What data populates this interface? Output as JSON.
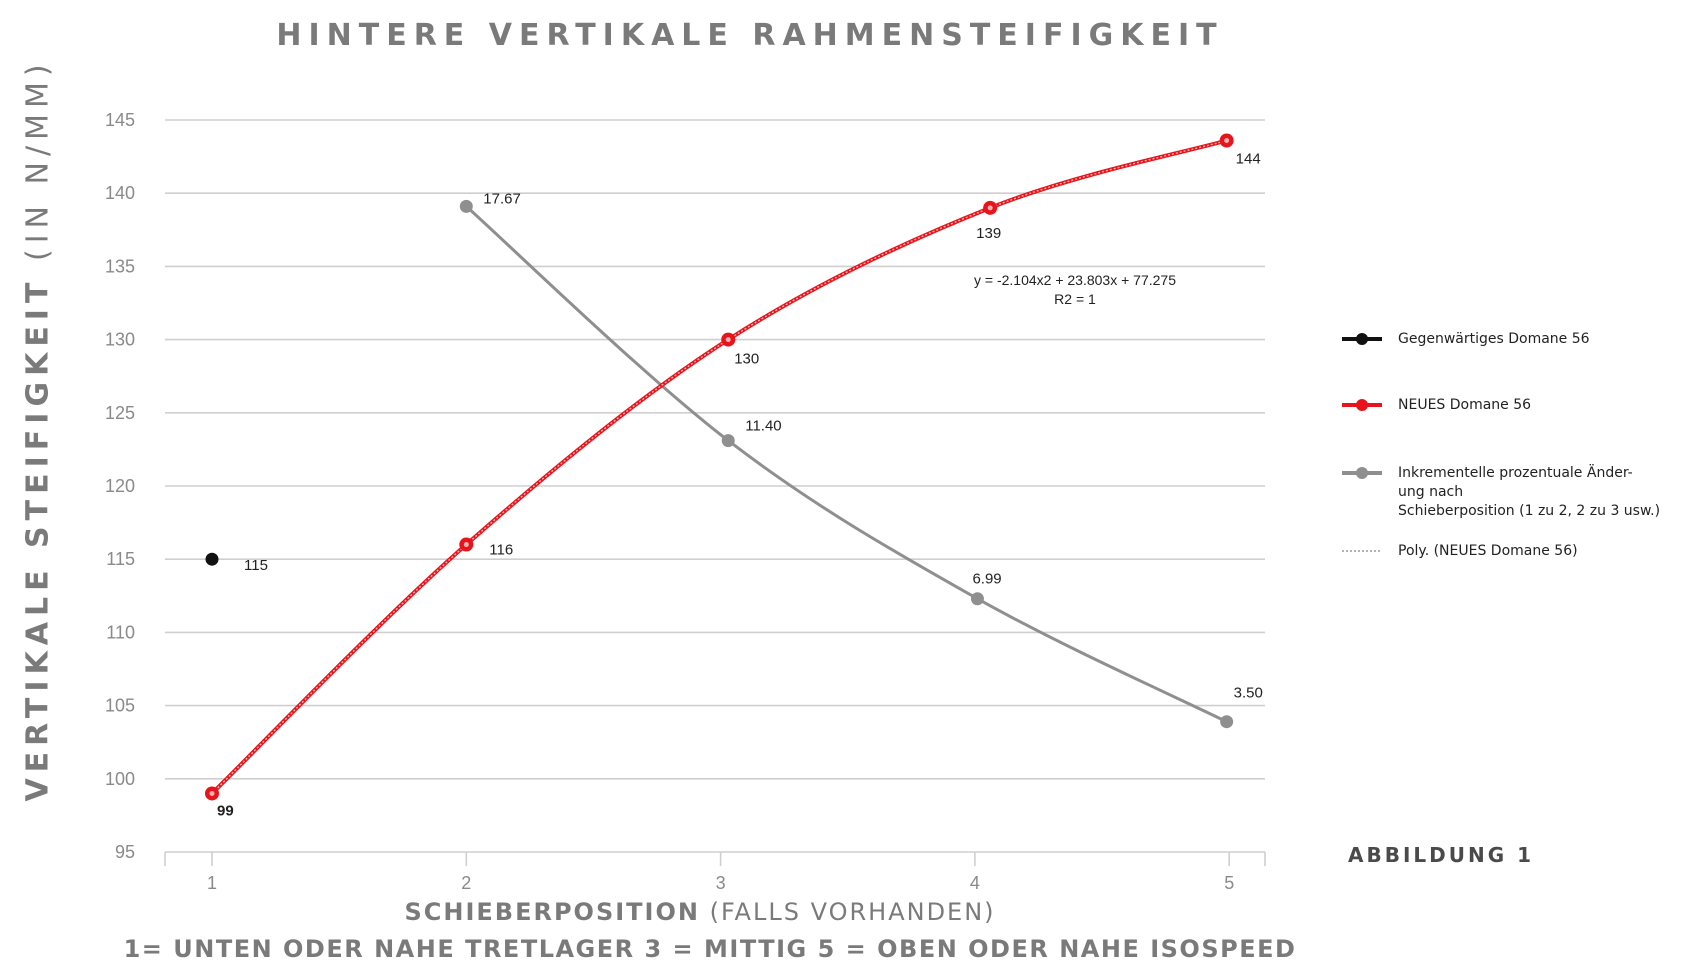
{
  "chart_data": {
    "type": "line",
    "title": "HINTERE VERTIKALE RAHMENSTEIFIGKEIT",
    "ylabel": {
      "main": "VERTIKALE STEIFIGKEIT",
      "unit": "(IN N/MM)"
    },
    "xlabel": {
      "main": "SCHIEBERPOSITION",
      "suffix": "(FALLS VORHANDEN)"
    },
    "xlabel_note": "1= UNTEN ODER NAHE TRETLAGER  3 = MITTIG  5 = OBEN ODER NAHE ISOSPEED",
    "figure_label": "ABBILDUNG 1",
    "x_ticks": [
      "1",
      "2",
      "3",
      "4",
      "5"
    ],
    "y_ticks": [
      "95",
      "100",
      "105",
      "110",
      "115",
      "120",
      "125",
      "130",
      "135",
      "140",
      "145"
    ],
    "ylim": [
      95,
      145
    ],
    "xlim": [
      0.8,
      5.15
    ],
    "grid": true,
    "legend_position": "right",
    "series": [
      {
        "name": "Gegenwärtiges Domane 56",
        "color": "#111111",
        "points": [
          {
            "x": 1,
            "y": 115,
            "label": "115"
          }
        ]
      },
      {
        "name": "NEUES Domane 56",
        "color": "#e8141b",
        "points": [
          {
            "x": 1,
            "y": 99,
            "label": "99"
          },
          {
            "x": 2,
            "y": 116,
            "label": "116"
          },
          {
            "x": 3.03,
            "y": 130,
            "label": "130"
          },
          {
            "x": 4.06,
            "y": 139,
            "label": "139"
          },
          {
            "x": 4.99,
            "y": 143.6,
            "label": "144"
          }
        ]
      },
      {
        "name": "Inkrementelle prozentuale Änder-\nung nach\nSchieberposition (1 zu 2, 2 zu 3 usw.)",
        "color": "#8f8f8f",
        "points": [
          {
            "x": 2,
            "y": 139.1,
            "label": "17.67"
          },
          {
            "x": 3.03,
            "y": 123.1,
            "label": "11.40"
          },
          {
            "x": 4.01,
            "y": 112.3,
            "label": "6.99"
          },
          {
            "x": 4.99,
            "y": 103.9,
            "label": "3.50"
          }
        ]
      }
    ],
    "trendline": {
      "name": "Poly. (NEUES Domane 56)",
      "color": "#e8141b",
      "equation": "y = -2.104x2 + 23.803x + 77.275",
      "r2": "R2 = 1"
    }
  }
}
